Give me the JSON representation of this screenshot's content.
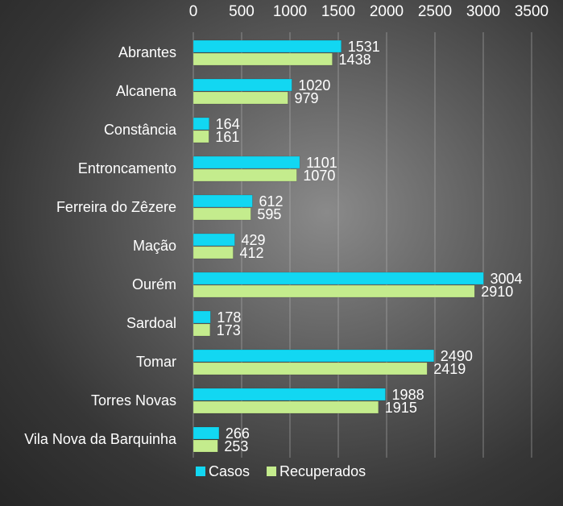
{
  "chart_data": {
    "type": "bar",
    "orientation": "horizontal",
    "title": "",
    "xlabel": "",
    "ylabel": "",
    "xlim": [
      0,
      3500
    ],
    "x_ticks": [
      0,
      500,
      1000,
      1500,
      2000,
      2500,
      3000,
      3500
    ],
    "tick_position": "top",
    "grid": true,
    "legend_position": "bottom",
    "categories": [
      "Abrantes",
      "Alcanena",
      "Constância",
      "Entroncamento",
      "Ferreira do Zêzere",
      "Mação",
      "Ourém",
      "Sardoal",
      "Tomar",
      "Torres Novas",
      "Vila Nova da Barquinha"
    ],
    "series": [
      {
        "name": "Casos",
        "color": "#12d7f2",
        "values": [
          1531,
          1020,
          164,
          1101,
          612,
          429,
          3004,
          178,
          2490,
          1988,
          266
        ]
      },
      {
        "name": "Recuperados",
        "color": "#c4ec8d",
        "values": [
          1438,
          979,
          161,
          1070,
          595,
          412,
          2910,
          173,
          2419,
          1915,
          253
        ]
      }
    ]
  }
}
